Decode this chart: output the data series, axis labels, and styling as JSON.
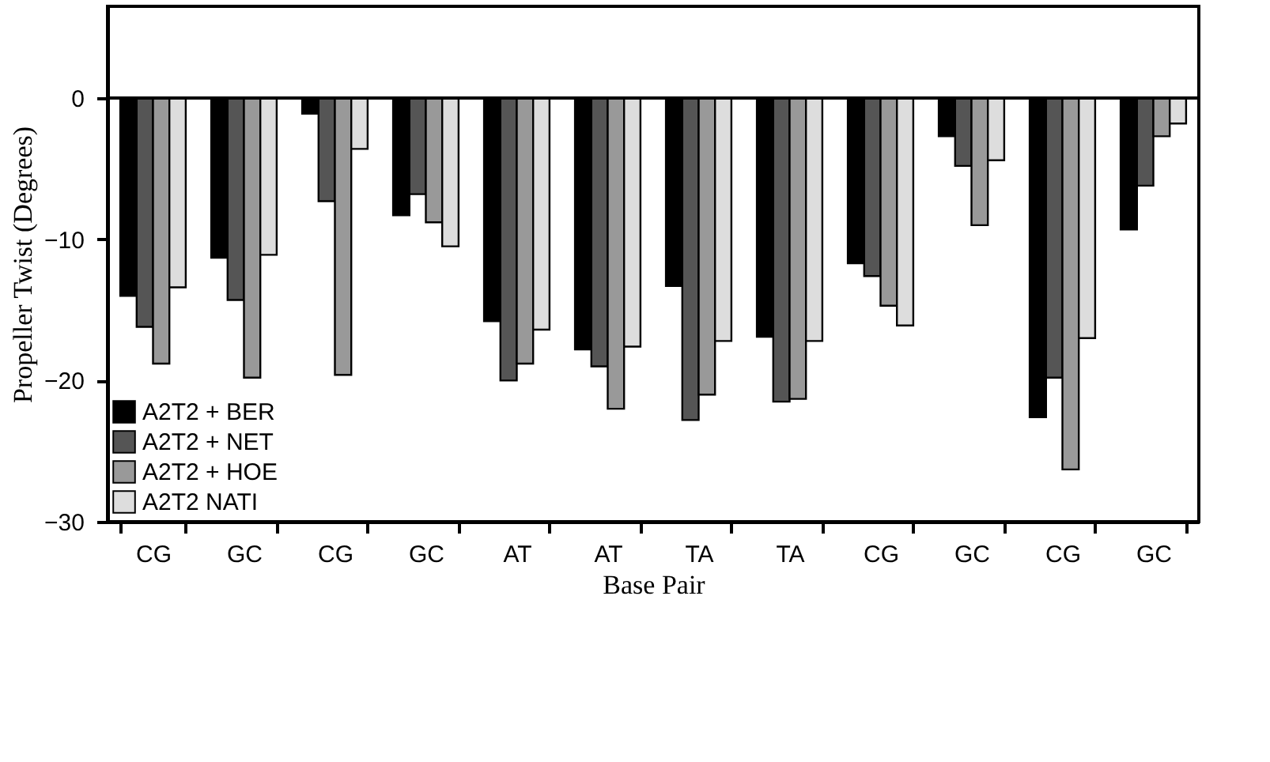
{
  "chart_data": {
    "type": "bar",
    "xlabel": "Base Pair",
    "ylabel": "Propeller Twist (Degrees)",
    "categories": [
      "CG",
      "GC",
      "CG",
      "GC",
      "AT",
      "AT",
      "TA",
      "TA",
      "CG",
      "GC",
      "CG",
      "GC"
    ],
    "series": [
      {
        "name": "A2T2 + BER",
        "color": "#000000",
        "values": [
          -14,
          -11.3,
          -1.1,
          -8.3,
          -15.8,
          -17.8,
          -13.3,
          -16.9,
          -11.7,
          -2.7,
          -22.6,
          -9.3
        ]
      },
      {
        "name": "A2T2 + NET",
        "color": "#555555",
        "values": [
          -16.2,
          -14.3,
          -7.3,
          -6.8,
          -20,
          -19,
          -22.8,
          -21.5,
          -12.6,
          -4.8,
          -19.8,
          -6.2
        ]
      },
      {
        "name": "A2T2 + HOE",
        "color": "#999999",
        "values": [
          -18.8,
          -19.8,
          -19.6,
          -8.8,
          -18.8,
          -22,
          -21,
          -21.3,
          -14.7,
          -9,
          -26.3,
          -2.7
        ]
      },
      {
        "name": "A2T2 NATI",
        "color": "#dddddd",
        "values": [
          -13.4,
          -11.1,
          -3.6,
          -10.5,
          -16.4,
          -17.6,
          -17.2,
          -17.2,
          -16.1,
          -4.4,
          -17,
          -1.8
        ]
      }
    ],
    "ylim": [
      -30,
      6.5
    ],
    "yticks": [
      -30,
      -20,
      -10,
      0
    ],
    "ref_lines": [
      {
        "axis": "y",
        "value": 0
      }
    ],
    "grid": false,
    "legend": "bottom left"
  }
}
